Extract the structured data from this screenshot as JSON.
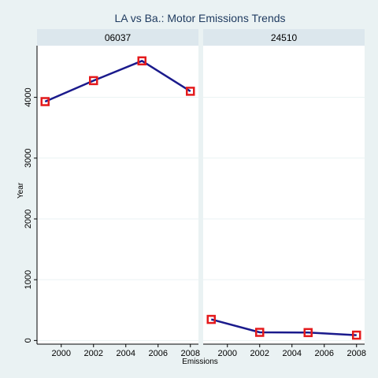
{
  "chart_data": {
    "type": "line",
    "title": "LA vs Ba.: Motor Emissions Trends",
    "xlabel": "Emissions",
    "ylabel": "Year",
    "xlim": [
      1998.5,
      2008.5
    ],
    "ylim": [
      -60,
      4850
    ],
    "x_ticks": [
      2000,
      2002,
      2004,
      2006,
      2008
    ],
    "y_ticks": [
      0,
      1000,
      2000,
      3000,
      4000
    ],
    "grid": true,
    "colors": {
      "line": "#1a1a8c",
      "marker": "#e41a1c",
      "strip": "#dce7ed",
      "background": "#eaf2f3",
      "panel": "#ffffff",
      "title": "#1e3a5f"
    },
    "panels": [
      {
        "label": "06037",
        "points": [
          {
            "x": 1999,
            "y": 3930
          },
          {
            "x": 2002,
            "y": 4275
          },
          {
            "x": 2005,
            "y": 4600
          },
          {
            "x": 2008,
            "y": 4100
          }
        ]
      },
      {
        "label": "24510",
        "points": [
          {
            "x": 1999,
            "y": 347
          },
          {
            "x": 2002,
            "y": 134
          },
          {
            "x": 2005,
            "y": 130
          },
          {
            "x": 2008,
            "y": 88
          }
        ]
      }
    ]
  }
}
